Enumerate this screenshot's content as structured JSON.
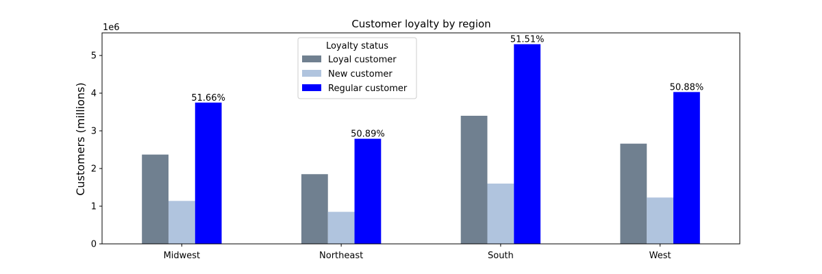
{
  "chart_data": {
    "type": "bar",
    "title": "Customer loyalty by region",
    "xlabel": "",
    "ylabel": "Customers (millions)",
    "y_offset_label": "1e6",
    "ylim": [
      0,
      5600000
    ],
    "yticks": [
      0,
      1000000,
      2000000,
      3000000,
      4000000,
      5000000
    ],
    "ytick_labels": [
      "0",
      "1",
      "2",
      "3",
      "4",
      "5"
    ],
    "categories": [
      "Midwest",
      "Northeast",
      "South",
      "West"
    ],
    "legend": {
      "title": "Loyalty status",
      "placement": "top-center"
    },
    "grid": false,
    "series": [
      {
        "name": "Loyal customer",
        "color": "#708090",
        "values": [
          2370000,
          1850000,
          3400000,
          2660000
        ]
      },
      {
        "name": "New customer",
        "color": "#b0c4de",
        "values": [
          1140000,
          850000,
          1600000,
          1230000
        ]
      },
      {
        "name": "Regular customer",
        "color": "#0000ff",
        "values": [
          3750000,
          2790000,
          5300000,
          4030000
        ]
      }
    ],
    "annotations": {
      "series_index": 2,
      "labels": [
        "51.66%",
        "50.89%",
        "51.51%",
        "50.88%"
      ]
    }
  }
}
